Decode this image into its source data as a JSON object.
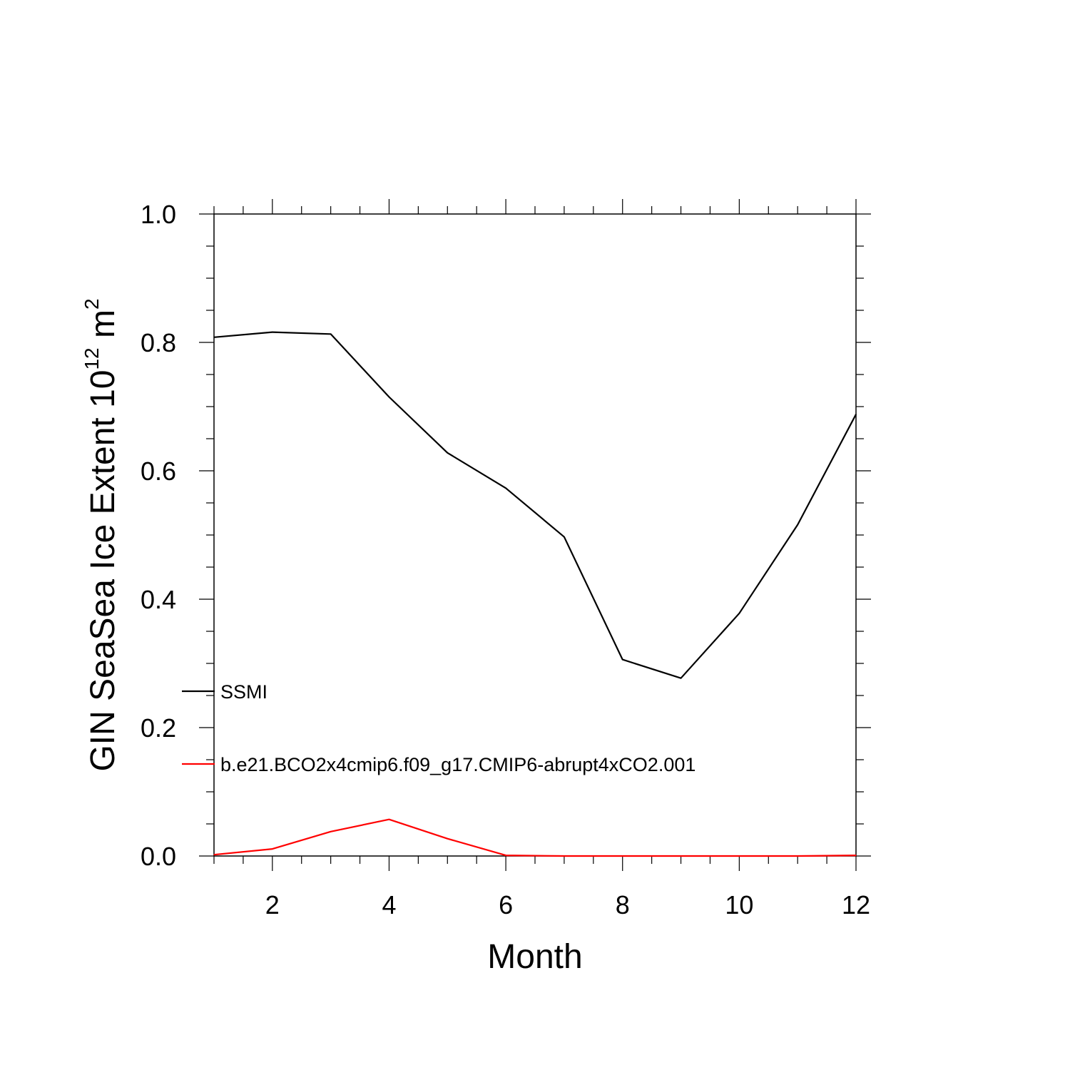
{
  "chart_data": {
    "type": "line",
    "title": "",
    "xlabel": "Month",
    "ylabel": {
      "prefix": "GIN SeaSea Ice Extent 10",
      "exponent": "12",
      "middle": " m",
      "unit_exponent": "2"
    },
    "xlim": [
      1,
      12
    ],
    "ylim": [
      0,
      1
    ],
    "x_ticks": [
      2,
      4,
      6,
      8,
      10,
      12
    ],
    "x_tick_labels": [
      "2",
      "4",
      "6",
      "8",
      "10",
      "12"
    ],
    "y_ticks": [
      0,
      0.2,
      0.4,
      0.6,
      0.8,
      1.0
    ],
    "y_tick_labels": [
      "0.0",
      "0.2",
      "0.4",
      "0.6",
      "0.8",
      "1.0"
    ],
    "grid": false,
    "legend_placement": "lower-left inside",
    "x": [
      1,
      2,
      3,
      4,
      5,
      6,
      7,
      8,
      9,
      10,
      11,
      12
    ],
    "series": [
      {
        "name": "SSMI",
        "color": "#000000",
        "values": [
          0.808,
          0.816,
          0.813,
          0.715,
          0.628,
          0.573,
          0.497,
          0.306,
          0.277,
          0.378,
          0.516,
          0.688
        ]
      },
      {
        "name": "b.e21.BCO2x4cmip6.f09_g17.CMIP6-abrupt4xCO2.001",
        "color": "#ff0000",
        "values": [
          0.002,
          0.011,
          0.038,
          0.057,
          0.027,
          0.001,
          0.0,
          0.0,
          0.0,
          0.0,
          0.0,
          0.001
        ]
      }
    ]
  }
}
